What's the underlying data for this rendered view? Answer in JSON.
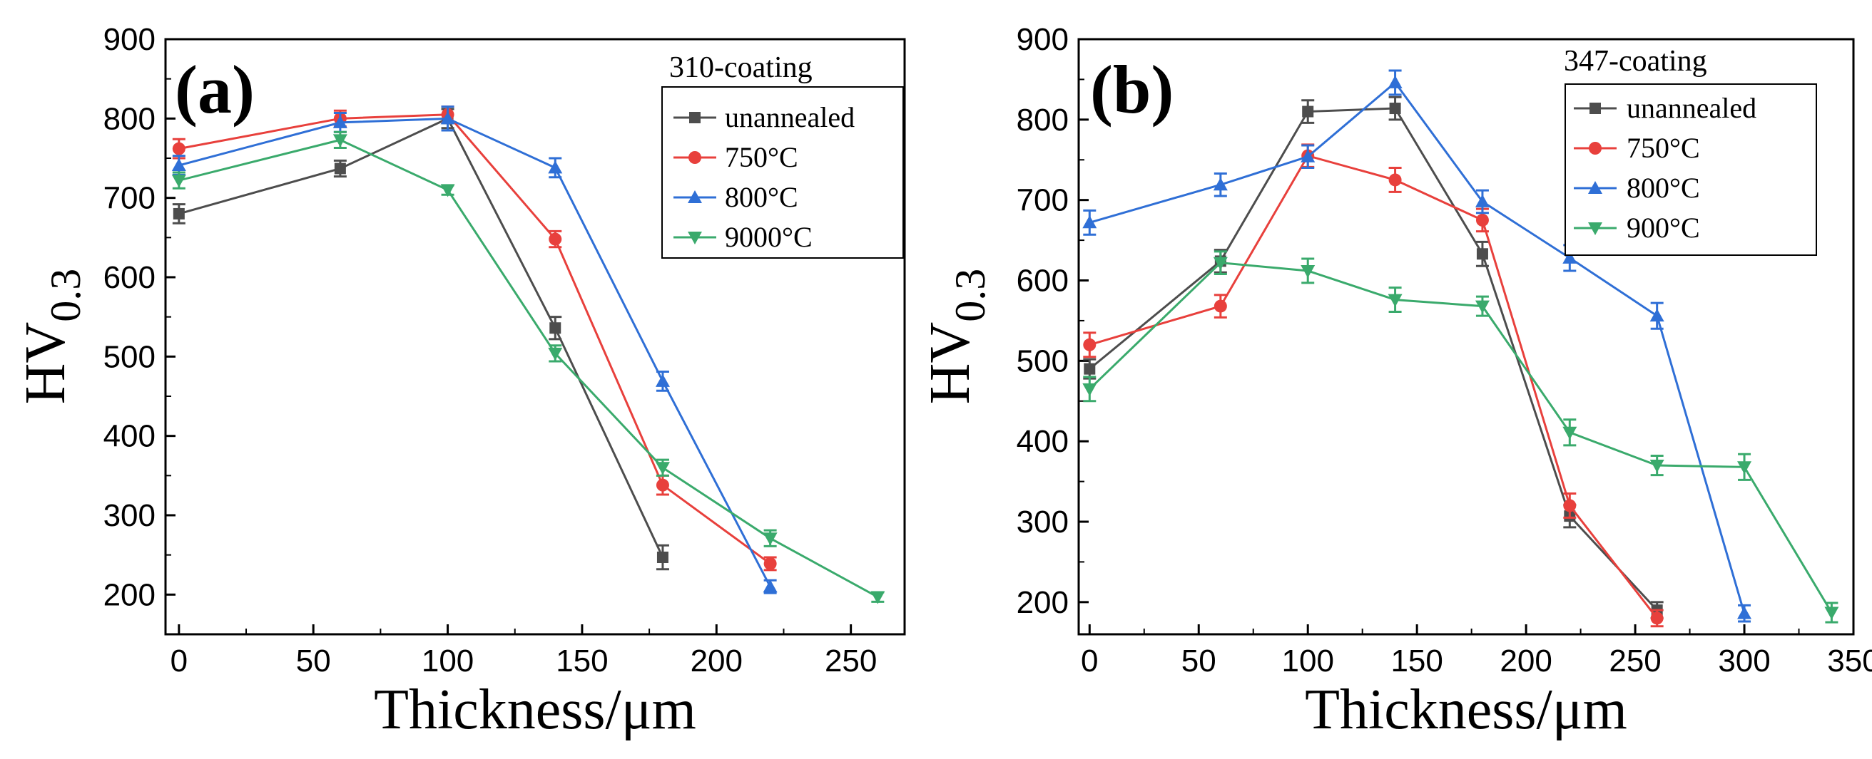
{
  "chart_data": [
    {
      "type": "line",
      "panel_label": "(a)",
      "title": "310-coating",
      "xlabel": "Thickness/μm",
      "ylabel": "HV",
      "ylabel_sub": "0.3",
      "xlim": [
        -5,
        270
      ],
      "ylim": [
        150,
        900
      ],
      "xticks": [
        0,
        50,
        100,
        150,
        200,
        250
      ],
      "yticks": [
        200,
        300,
        400,
        500,
        600,
        700,
        800,
        900
      ],
      "legend_position": "top-right",
      "series": [
        {
          "name": "unannealed",
          "color": "#4d4d4d",
          "marker": "square",
          "x": [
            0,
            60,
            100,
            140,
            180
          ],
          "y": [
            680,
            737,
            800,
            536,
            247
          ],
          "err": [
            12,
            10,
            12,
            14,
            15
          ]
        },
        {
          "name": "750°C",
          "color": "#e8403c",
          "marker": "circle",
          "x": [
            0,
            60,
            100,
            140,
            180,
            220
          ],
          "y": [
            762,
            800,
            805,
            648,
            338,
            239
          ],
          "err": [
            12,
            10,
            10,
            10,
            12,
            8
          ]
        },
        {
          "name": "800°C",
          "color": "#2f6fd6",
          "marker": "triangle-up",
          "x": [
            0,
            60,
            100,
            140,
            180,
            220
          ],
          "y": [
            741,
            795,
            800,
            738,
            469,
            210
          ],
          "err": [
            12,
            12,
            15,
            12,
            12,
            8
          ]
        },
        {
          "name": "9000°C",
          "color": "#3aaa6c",
          "marker": "triangle-down",
          "x": [
            0,
            60,
            100,
            140,
            180,
            220,
            260
          ],
          "y": [
            722,
            773,
            710,
            504,
            360,
            271,
            197
          ],
          "err": [
            10,
            10,
            6,
            10,
            10,
            10,
            6
          ]
        }
      ]
    },
    {
      "type": "line",
      "panel_label": "(b)",
      "title": "347-coating",
      "xlabel": "Thickness/μm",
      "ylabel": "HV",
      "ylabel_sub": "0.3",
      "xlim": [
        -5,
        350
      ],
      "ylim": [
        160,
        900
      ],
      "xticks": [
        0,
        50,
        100,
        150,
        200,
        250,
        300,
        350
      ],
      "yticks": [
        200,
        300,
        400,
        500,
        600,
        700,
        800,
        900
      ],
      "legend_position": "top-right",
      "series": [
        {
          "name": "unannealed",
          "color": "#4d4d4d",
          "marker": "square",
          "x": [
            0,
            60,
            100,
            140,
            180,
            220,
            260
          ],
          "y": [
            490,
            624,
            810,
            814,
            633,
            307,
            190
          ],
          "err": [
            12,
            14,
            14,
            14,
            15,
            14,
            10
          ]
        },
        {
          "name": "750°C",
          "color": "#e8403c",
          "marker": "circle",
          "x": [
            0,
            60,
            100,
            140,
            180,
            220,
            260
          ],
          "y": [
            520,
            568,
            755,
            725,
            675,
            320,
            180
          ],
          "err": [
            15,
            14,
            14,
            15,
            14,
            15,
            10
          ]
        },
        {
          "name": "800°C",
          "color": "#2f6fd6",
          "marker": "triangle-up",
          "x": [
            0,
            60,
            100,
            140,
            180,
            220,
            260,
            300
          ],
          "y": [
            672,
            719,
            754,
            846,
            698,
            628,
            556,
            186
          ],
          "err": [
            15,
            14,
            14,
            15,
            14,
            16,
            16,
            10
          ]
        },
        {
          "name": "900°C",
          "color": "#3aaa6c",
          "marker": "triangle-down",
          "x": [
            0,
            60,
            100,
            140,
            180,
            220,
            260,
            300,
            340
          ],
          "y": [
            465,
            622,
            612,
            576,
            568,
            411,
            370,
            368,
            187
          ],
          "err": [
            15,
            14,
            15,
            15,
            12,
            16,
            12,
            16,
            12
          ]
        }
      ]
    }
  ]
}
